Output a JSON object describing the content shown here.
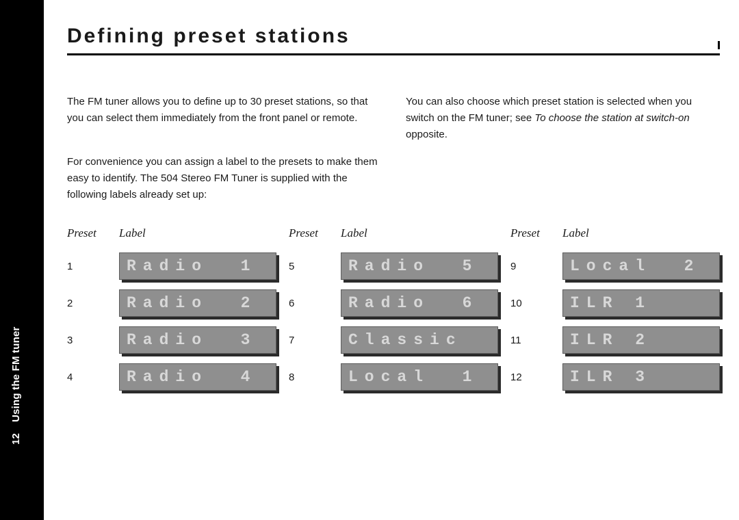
{
  "page_number": "12",
  "sidebar_label": "Using the FM tuner",
  "heading": "Defining preset stations",
  "para1": "The FM tuner allows you to define up to 30 preset stations, so that you can select them immediately from the front panel or remote.",
  "para2": "For convenience you can assign a label to the presets to make them easy to identify. The 504 Stereo FM Tuner is supplied with the following labels already set up:",
  "para_right_a": "You can also choose which preset station is selected when you switch on the FM tuner; see ",
  "para_right_ref": "To choose the station at switch-on",
  "para_right_b": " opposite.",
  "head_preset": "Preset",
  "head_label": "Label",
  "cols": [
    {
      "rows": [
        {
          "num": "1",
          "label": "Radio  1"
        },
        {
          "num": "2",
          "label": "Radio  2"
        },
        {
          "num": "3",
          "label": "Radio  3"
        },
        {
          "num": "4",
          "label": "Radio  4"
        }
      ]
    },
    {
      "rows": [
        {
          "num": "5",
          "label": "Radio  5"
        },
        {
          "num": "6",
          "label": "Radio  6"
        },
        {
          "num": "7",
          "label": "Classic"
        },
        {
          "num": "8",
          "label": "Local  1"
        }
      ]
    },
    {
      "rows": [
        {
          "num": "9",
          "label": "Local  2"
        },
        {
          "num": "10",
          "label": "ILR 1"
        },
        {
          "num": "11",
          "label": "ILR 2"
        },
        {
          "num": "12",
          "label": "ILR 3"
        }
      ]
    }
  ],
  "colors": {
    "lcd_bg": "#8f8f8f",
    "lcd_text": "#d8d8d8",
    "lcd_shadow": "#2b2b2b"
  }
}
